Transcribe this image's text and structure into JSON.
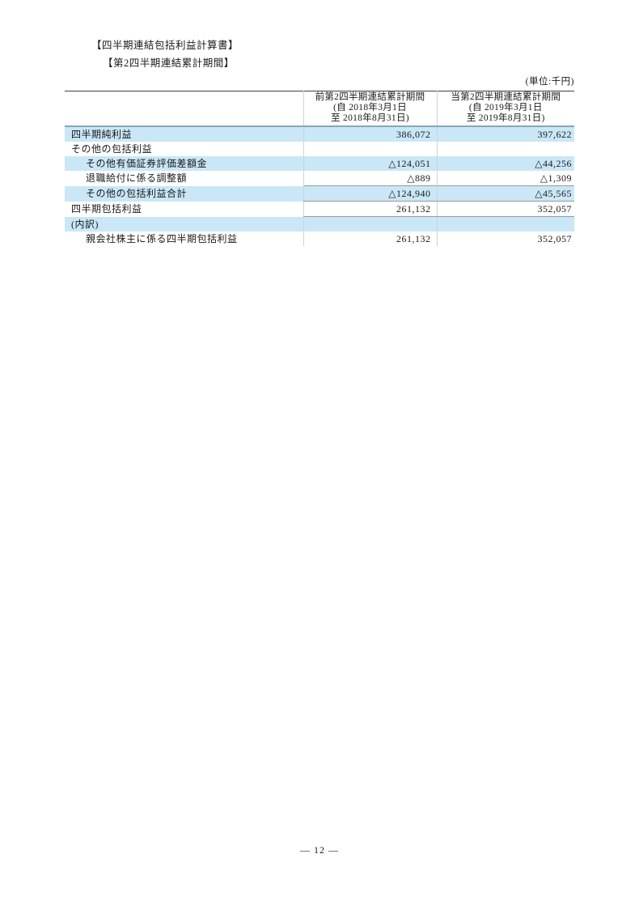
{
  "page": {
    "title_statement": "【四半期連結包括利益計算書】",
    "title_period": "【第2四半期連結累計期間】",
    "unit_label": "(単位:千円)",
    "page_number": "— 12 —"
  },
  "table": {
    "columns": [
      {
        "period_label": "前第2四半期連結累計期間",
        "date_from": "(自 2018年3月1日",
        "date_to": "至 2018年8月31日)"
      },
      {
        "period_label": "当第2四半期連結累計期間",
        "date_from": "(自 2019年3月1日",
        "date_to": "至 2019年8月31日)"
      }
    ],
    "rows": [
      {
        "label": "四半期純利益",
        "indent": 0,
        "highlight": true,
        "values": [
          "386,072",
          "397,622"
        ]
      },
      {
        "label": "その他の包括利益",
        "indent": 0,
        "highlight": false,
        "values": [
          "",
          ""
        ]
      },
      {
        "label": "その他有価証券評価差額金",
        "indent": 1,
        "highlight": true,
        "values": [
          "△124,051",
          "△44,256"
        ]
      },
      {
        "label": "退職給付に係る調整額",
        "indent": 1,
        "highlight": false,
        "values": [
          "△889",
          "△1,309"
        ]
      },
      {
        "label": "その他の包括利益合計",
        "indent": 1,
        "highlight": true,
        "values": [
          "△124,940",
          "△45,565"
        ]
      },
      {
        "label": "四半期包括利益",
        "indent": 0,
        "highlight": false,
        "values": [
          "261,132",
          "352,057"
        ]
      },
      {
        "label": "(内訳)",
        "indent": 0,
        "highlight": true,
        "values": [
          "",
          ""
        ]
      },
      {
        "label": "親会社株主に係る四半期包括利益",
        "indent": 1,
        "highlight": false,
        "values": [
          "261,132",
          "352,057"
        ]
      }
    ],
    "colors": {
      "row_highlight": "#cae7f7",
      "header_rule": "#86a6bf",
      "table_top_rule": "#404040",
      "subtotal_rule": "#9a9a9a",
      "column_divider": "#d2d2d2"
    }
  }
}
